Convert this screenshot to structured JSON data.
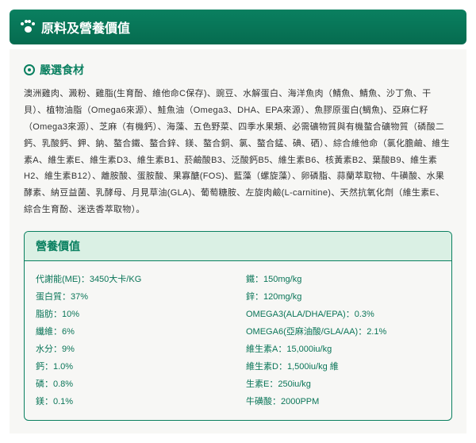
{
  "header": {
    "title": "原料及營養價值"
  },
  "subHeader": "嚴選食材",
  "ingredients": "澳洲雞肉、澱粉、雞脂(生育酚、維他命C保存)、豌豆、水解蛋白、海洋魚肉（鯖魚、鯖魚、沙丁魚、干貝）、植物油脂（Omega6來源）、鮭魚油（Omega3、DHA、EPA來源）、魚膠原蛋白(鯛魚)、亞麻仁籽（Omega3來源）、芝麻（有機鈣）、海藻、五色野菜、四季水果類、必需礦物質與有機螯合礦物質（磷酸二鈣、乳酸鈣、鉀、鈉、螯合鐵、螯合鋅、鎂、螯合銅、氯、螯合錳、碘、硒）、綜合維他命（氯化膽鹼、維生素A、維生素E、維生素D3、維生素B1、菸鹼酸B3、泛酸鈣B5、維生素B6、核黃素B2、葉酸B9、維生素H2、維生素B12）、離胺酸、蛋胺酸、果寡醣(FOS)、藍藻（螺旋藻）、卵磷脂、蒜蘭萃取物、牛磺酸、水果酵素、納豆益菌、乳酵母、月見草油(GLA)、葡萄糖胺、左旋肉鹼(L-carnitine)、天然抗氧化劑（維生素E、綜合生育酚、迷迭香萃取物）。",
  "nutritionHeader": "營養價值",
  "left": [
    {
      "k": "代謝能(ME)",
      "v": "3450大卡/KG"
    },
    {
      "k": "蛋白質",
      "v": "37%"
    },
    {
      "k": "脂肪",
      "v": "10%"
    },
    {
      "k": "纖維",
      "v": "6%"
    },
    {
      "k": "水分",
      "v": "9%"
    },
    {
      "k": "鈣",
      "v": "1.0%"
    },
    {
      "k": "磷",
      "v": "0.8%"
    },
    {
      "k": "鎂",
      "v": "0.1%"
    }
  ],
  "right": [
    {
      "k": "鐵",
      "v": "150mg/kg"
    },
    {
      "k": "鋅",
      "v": "120mg/kg"
    },
    {
      "k": "OMEGA3(ALA/DHA/EPA)",
      "v": "0.3%"
    },
    {
      "k": "OMEGA6(亞麻油酸/GLA/AA)",
      "v": "2.1%"
    },
    {
      "k": "維生素A",
      "v": "15,000iu/kg"
    },
    {
      "k": "維生素D",
      "v": "1,500iu/kg 維"
    },
    {
      "k": "生素E",
      "v": "250iu/kg"
    },
    {
      "k": "牛磺酸",
      "v": "2000PPM"
    }
  ]
}
